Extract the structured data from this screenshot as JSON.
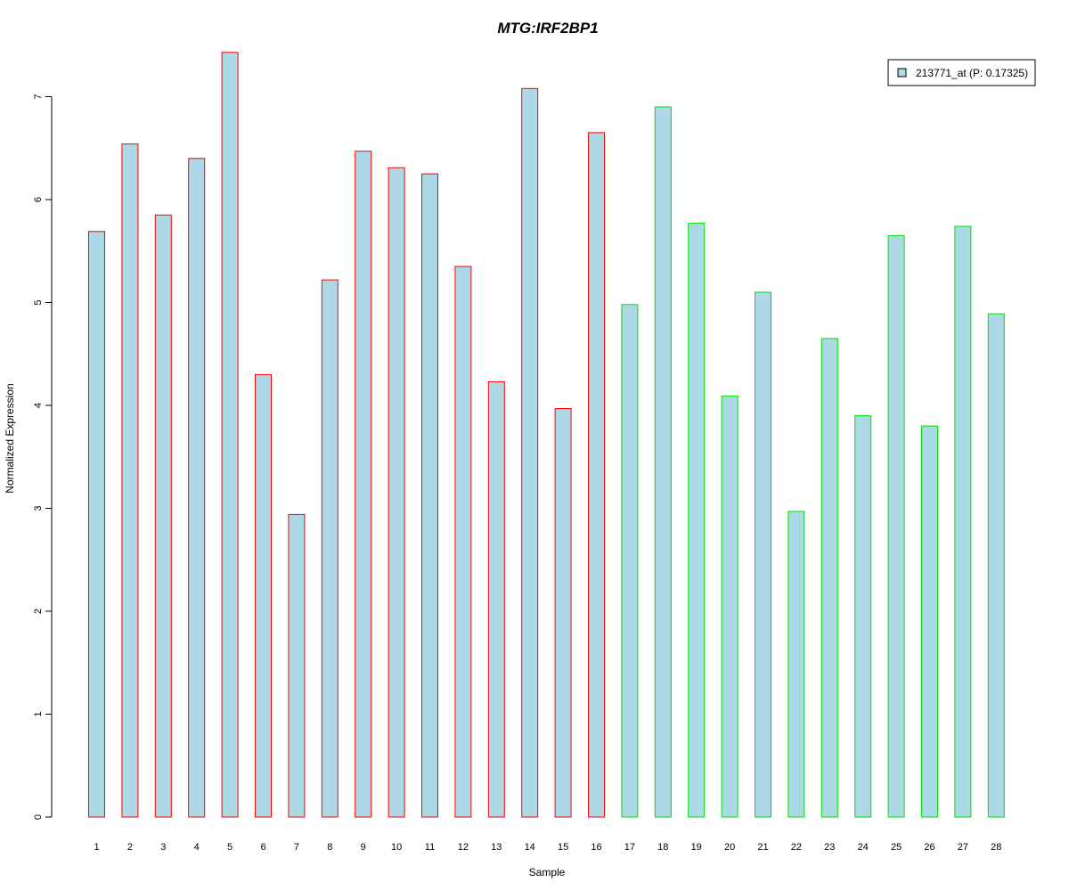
{
  "chart_data": {
    "type": "bar",
    "title": "MTG:IRF2BP1",
    "xlabel": "Sample",
    "ylabel": "Normalized Expression",
    "ylim": [
      0,
      7.45
    ],
    "yticks": [
      0,
      1,
      2,
      3,
      4,
      5,
      6,
      7
    ],
    "categories": [
      "1",
      "2",
      "3",
      "4",
      "5",
      "6",
      "7",
      "8",
      "9",
      "10",
      "11",
      "12",
      "13",
      "14",
      "15",
      "16",
      "17",
      "18",
      "19",
      "20",
      "21",
      "22",
      "23",
      "24",
      "25",
      "26",
      "27",
      "28"
    ],
    "values": [
      5.69,
      6.54,
      5.85,
      6.4,
      7.43,
      4.3,
      2.94,
      5.22,
      6.47,
      6.31,
      6.25,
      5.35,
      4.23,
      7.08,
      3.97,
      6.65,
      4.98,
      6.9,
      5.77,
      4.09,
      5.1,
      2.97,
      4.65,
      3.9,
      5.65,
      3.8,
      5.74,
      4.89
    ],
    "groups": [
      "red",
      "red",
      "red",
      "red",
      "red",
      "red",
      "red",
      "red",
      "red",
      "red",
      "red",
      "red",
      "red",
      "red",
      "red",
      "red",
      "green",
      "green",
      "green",
      "green",
      "green",
      "green",
      "green",
      "green",
      "green",
      "green",
      "green",
      "green"
    ],
    "grid": false,
    "legend": {
      "position": "top-right",
      "entries": [
        "213771_at (P: 0.17325)"
      ]
    },
    "colors": {
      "title": "#0000cc",
      "bar_fill": "#add8e6",
      "red": "#ff0000",
      "green": "#00e000",
      "axis": "#000000"
    }
  }
}
